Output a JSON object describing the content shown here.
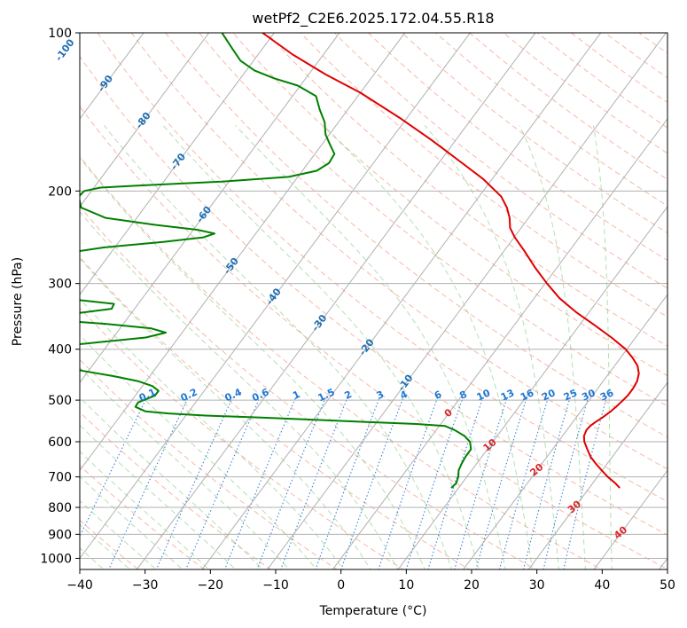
{
  "chart_data": {
    "type": "line",
    "title": "wetPf2_C2E6.2025.172.04.55.R18",
    "xlabel": "Temperature (°C)",
    "ylabel": "Pressure (hPa)",
    "xlim": [
      -40,
      50
    ],
    "ylim": [
      1050,
      100
    ],
    "y_scale": "log",
    "skew": true,
    "x_ticks": [
      "−40",
      "−30",
      "−20",
      "−10",
      "0",
      "10",
      "20",
      "30",
      "40",
      "50"
    ],
    "y_ticks": [
      "1000",
      "900",
      "800",
      "700",
      "600",
      "500",
      "400",
      "300",
      "200",
      "100"
    ],
    "grid": true,
    "colors": {
      "temperature": "#e00000",
      "dewpoint": "#008000",
      "dry_adiabat": "#f08a6a",
      "moist_adiabat": "#6cbf6c",
      "mixing_ratio": "#1f77d4",
      "isotherm": "#b0b0b0",
      "isotherm_label": "#1f6fb4",
      "warm_label": "#d62728",
      "lcl_curve": "#d8b48a"
    },
    "isotherm_labels_above_500": [
      "-100",
      "-90",
      "-80",
      "-70",
      "-60",
      "-50",
      "-40",
      "-30",
      "-20",
      "-10"
    ],
    "isotherm_labels_below_500": [
      "0",
      "10",
      "20",
      "30",
      "40"
    ],
    "mixing_ratio_labels": [
      "0.1",
      "0.2",
      "0.4",
      "0.6",
      "1",
      "1.5",
      "2",
      "3",
      "4",
      "6",
      "8",
      "10",
      "13",
      "16",
      "20",
      "25",
      "30",
      "36"
    ],
    "series": [
      {
        "key": "temperature",
        "values": [
          [
            735,
            34.7
          ],
          [
            720,
            33.5
          ],
          [
            700,
            31.6
          ],
          [
            680,
            29.9
          ],
          [
            660,
            28.2
          ],
          [
            640,
            26.6
          ],
          [
            620,
            25.3
          ],
          [
            600,
            24.0
          ],
          [
            585,
            23.3
          ],
          [
            570,
            23.0
          ],
          [
            560,
            23.1
          ],
          [
            550,
            23.5
          ],
          [
            540,
            24.0
          ],
          [
            525,
            24.6
          ],
          [
            510,
            25.0
          ],
          [
            500,
            25.2
          ],
          [
            490,
            25.4
          ],
          [
            475,
            25.4
          ],
          [
            460,
            25.2
          ],
          [
            445,
            24.6
          ],
          [
            430,
            23.5
          ],
          [
            415,
            21.8
          ],
          [
            400,
            19.8
          ],
          [
            380,
            16.3
          ],
          [
            360,
            12.3
          ],
          [
            340,
            8.0
          ],
          [
            320,
            3.9
          ],
          [
            300,
            0.3
          ],
          [
            280,
            -3.3
          ],
          [
            260,
            -6.9
          ],
          [
            245,
            -9.9
          ],
          [
            235,
            -11.7
          ],
          [
            225,
            -12.9
          ],
          [
            215,
            -14.5
          ],
          [
            205,
            -16.6
          ],
          [
            190,
            -21.3
          ],
          [
            175,
            -27.2
          ],
          [
            160,
            -33.7
          ],
          [
            145,
            -41.2
          ],
          [
            130,
            -50.0
          ],
          [
            120,
            -57.4
          ],
          [
            110,
            -64.7
          ],
          [
            100,
            -71.8
          ]
        ]
      },
      {
        "key": "dewpoint",
        "values": [
          [
            735,
            8.9
          ],
          [
            720,
            9.1
          ],
          [
            700,
            8.7
          ],
          [
            680,
            8.0
          ],
          [
            660,
            7.7
          ],
          [
            640,
            7.5
          ],
          [
            620,
            7.5
          ],
          [
            600,
            6.5
          ],
          [
            585,
            5.0
          ],
          [
            570,
            2.8
          ],
          [
            560,
            0.9
          ],
          [
            555,
            -3.7
          ],
          [
            550,
            -12.0
          ],
          [
            540,
            -27.8
          ],
          [
            535,
            -37.0
          ],
          [
            530,
            -42.9
          ],
          [
            525,
            -46.7
          ],
          [
            515,
            -48.7
          ],
          [
            505,
            -48.8
          ],
          [
            500,
            -48.2
          ],
          [
            490,
            -47.0
          ],
          [
            480,
            -47.0
          ],
          [
            470,
            -48.5
          ],
          [
            460,
            -51.3
          ],
          [
            450,
            -55.6
          ],
          [
            440,
            -60.8
          ],
          [
            425,
            -66.9
          ],
          [
            410,
            -71.8
          ],
          [
            400,
            -71.0
          ],
          [
            390,
            -63.4
          ],
          [
            380,
            -55.0
          ],
          [
            372,
            -52.5
          ],
          [
            365,
            -55.3
          ],
          [
            358,
            -62.7
          ],
          [
            352,
            -71.4
          ],
          [
            348,
            -72.8
          ],
          [
            345,
            -71.0
          ],
          [
            340,
            -67.1
          ],
          [
            335,
            -63.5
          ],
          [
            328,
            -63.7
          ],
          [
            322,
            -70.0
          ],
          [
            315,
            -79.5
          ],
          [
            305,
            -84.5
          ],
          [
            295,
            -85.2
          ],
          [
            285,
            -83.6
          ],
          [
            275,
            -80.5
          ],
          [
            268,
            -77.8
          ],
          [
            262,
            -76.4
          ],
          [
            256,
            -71.6
          ],
          [
            250,
            -63.2
          ],
          [
            245,
            -57.6
          ],
          [
            241,
            -56.3
          ],
          [
            237,
            -59.4
          ],
          [
            232,
            -66.4
          ],
          [
            225,
            -74.8
          ],
          [
            215,
            -79.7
          ],
          [
            205,
            -81.3
          ],
          [
            200,
            -81.1
          ],
          [
            197,
            -79.0
          ],
          [
            195,
            -72.2
          ],
          [
            192,
            -61.2
          ],
          [
            188,
            -51.4
          ],
          [
            183,
            -47.8
          ],
          [
            177,
            -46.8
          ],
          [
            170,
            -47.0
          ],
          [
            163,
            -48.8
          ],
          [
            156,
            -50.6
          ],
          [
            148,
            -52.1
          ],
          [
            140,
            -54.3
          ],
          [
            132,
            -56.4
          ],
          [
            126,
            -60.4
          ],
          [
            122,
            -64.9
          ],
          [
            118,
            -68.7
          ],
          [
            113,
            -72.0
          ],
          [
            107,
            -74.7
          ],
          [
            100,
            -78.0
          ]
        ]
      }
    ]
  }
}
